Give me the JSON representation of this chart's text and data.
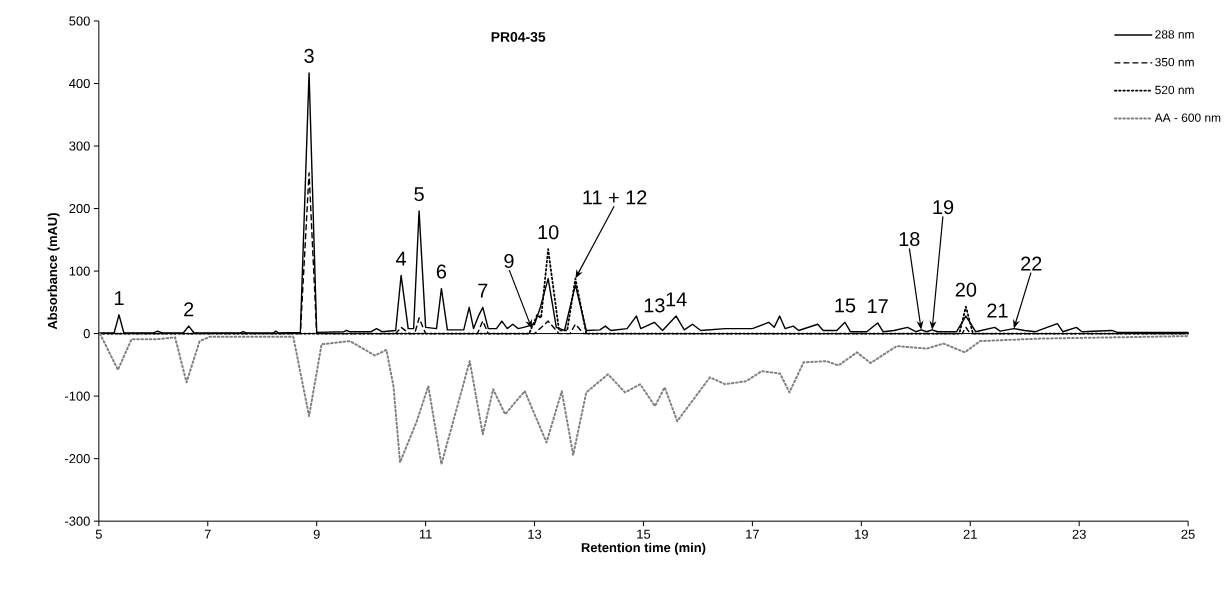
{
  "chart_data": {
    "type": "line",
    "title": "PR04-35",
    "xlabel": "Retention time (min)",
    "ylabel": "Absorbance (mAU)",
    "xlim": [
      5,
      25
    ],
    "ylim": [
      -300,
      500
    ],
    "xticks": [
      5,
      7,
      9,
      11,
      13,
      15,
      17,
      19,
      21,
      23,
      25
    ],
    "yticks": [
      -300,
      -200,
      -100,
      0,
      100,
      200,
      300,
      400,
      500
    ],
    "legend": "top right",
    "ref_lines": [
      {
        "axis": "y",
        "value": 0,
        "color": "#000000"
      }
    ],
    "series": [
      {
        "name": "288 nm",
        "color": "#000000",
        "line_style": "solid",
        "x": [
          5.0,
          5.28,
          5.37,
          5.46,
          6.0,
          6.08,
          6.16,
          6.55,
          6.65,
          6.75,
          7.6,
          7.65,
          7.7,
          8.2,
          8.25,
          8.3,
          8.7,
          8.86,
          9.0,
          9.5,
          9.55,
          9.6,
          10.0,
          10.1,
          10.2,
          10.45,
          10.55,
          10.68,
          10.78,
          10.88,
          11.0,
          11.2,
          11.29,
          11.4,
          11.7,
          11.8,
          11.88,
          11.98,
          12.05,
          12.15,
          12.3,
          12.4,
          12.5,
          12.6,
          12.7,
          12.8,
          13.0,
          13.1,
          13.25,
          13.4,
          13.55,
          13.75,
          13.95,
          14.2,
          14.3,
          14.4,
          14.7,
          14.87,
          14.95,
          15.2,
          15.35,
          15.6,
          15.75,
          15.9,
          16.05,
          16.5,
          17.0,
          17.3,
          17.4,
          17.5,
          17.6,
          17.75,
          17.85,
          18.2,
          18.3,
          18.55,
          18.7,
          18.8,
          19.1,
          19.3,
          19.4,
          19.6,
          19.85,
          20.0,
          20.1,
          20.2,
          20.3,
          20.4,
          20.75,
          20.92,
          21.1,
          21.45,
          21.55,
          21.8,
          22.0,
          22.2,
          22.6,
          22.7,
          22.95,
          23.05,
          23.6,
          23.7,
          25.0
        ],
        "values": [
          1,
          1,
          30,
          1,
          1,
          4,
          1,
          1,
          12,
          1,
          1,
          3,
          1,
          1,
          4,
          1,
          2,
          417,
          2,
          3,
          5,
          3,
          3,
          8,
          3,
          5,
          93,
          8,
          8,
          196,
          10,
          8,
          72,
          6,
          6,
          42,
          8,
          30,
          42,
          8,
          8,
          20,
          8,
          15,
          8,
          10,
          15,
          40,
          88,
          10,
          5,
          78,
          5,
          6,
          12,
          5,
          8,
          28,
          8,
          18,
          5,
          28,
          6,
          15,
          5,
          8,
          8,
          18,
          10,
          28,
          8,
          12,
          5,
          15,
          5,
          5,
          18,
          3,
          3,
          17,
          3,
          5,
          10,
          3,
          6,
          3,
          6,
          3,
          3,
          28,
          3,
          10,
          4,
          8,
          5,
          3,
          16,
          3,
          10,
          3,
          5,
          2,
          2
        ]
      },
      {
        "name": "350 nm",
        "color": "#000000",
        "line_style": "dashed",
        "x": [
          5.0,
          8.7,
          8.86,
          9.0,
          10.45,
          10.55,
          10.7,
          10.8,
          10.88,
          11.0,
          11.95,
          12.05,
          12.15,
          13.0,
          13.25,
          13.45,
          13.65,
          13.75,
          13.9,
          20.85,
          20.92,
          21.0,
          25.0
        ],
        "values": [
          0,
          0,
          257,
          0,
          0,
          10,
          0,
          0,
          25,
          0,
          0,
          20,
          0,
          0,
          20,
          0,
          0,
          15,
          0,
          0,
          10,
          0,
          0
        ]
      },
      {
        "name": "520 nm",
        "color": "#000000",
        "line_style": "dotted",
        "x": [
          5.0,
          12.9,
          13.05,
          13.12,
          13.25,
          13.45,
          13.6,
          13.75,
          13.95,
          20.8,
          20.92,
          21.05,
          25.0
        ],
        "values": [
          0,
          0,
          30,
          25,
          135,
          5,
          5,
          88,
          0,
          0,
          43,
          0,
          0
        ]
      },
      {
        "name": "AA - 600 nm",
        "color": "#808080",
        "line_style": "dotted",
        "x": [
          5.02,
          5.35,
          5.6,
          6.06,
          6.4,
          6.61,
          6.85,
          7.04,
          8.57,
          8.86,
          9.09,
          9.61,
          10.07,
          10.28,
          10.41,
          10.53,
          10.83,
          11.05,
          11.29,
          11.81,
          12.05,
          12.24,
          12.46,
          12.82,
          13.22,
          13.5,
          13.71,
          13.95,
          14.35,
          14.66,
          14.94,
          15.21,
          15.39,
          15.62,
          15.92,
          16.22,
          16.5,
          16.89,
          17.17,
          17.51,
          17.68,
          17.94,
          18.36,
          18.58,
          18.92,
          19.17,
          19.65,
          20.2,
          20.51,
          20.9,
          21.18,
          22.28,
          25.0
        ],
        "values": [
          0,
          -58,
          -9,
          -9,
          -6,
          -78,
          -12,
          -5,
          -5,
          -132,
          -17,
          -12,
          -35,
          -26,
          -84,
          -206,
          -142,
          -84,
          -209,
          -44,
          -161,
          -89,
          -129,
          -92,
          -174,
          -92,
          -194,
          -94,
          -65,
          -94,
          -81,
          -116,
          -86,
          -140,
          -105,
          -70,
          -81,
          -76,
          -60,
          -64,
          -94,
          -46,
          -44,
          -51,
          -30,
          -47,
          -20,
          -24,
          -16,
          -30,
          -12,
          -8,
          -4
        ]
      }
    ],
    "annotations": [
      {
        "text": "1",
        "x": 5.37,
        "y": 30
      },
      {
        "text": "2",
        "x": 6.65,
        "y": 12
      },
      {
        "text": "3",
        "x": 8.86,
        "y": 417
      },
      {
        "text": "4",
        "x": 10.55,
        "y": 93
      },
      {
        "text": "5",
        "x": 10.88,
        "y": 196
      },
      {
        "text": "6",
        "x": 11.29,
        "y": 72
      },
      {
        "text": "7",
        "x": 12.05,
        "y": 42
      },
      {
        "text": "9",
        "x": 12.95,
        "y": 8
      },
      {
        "text": "10",
        "x": 13.25,
        "y": 135
      },
      {
        "text": "11 + 12",
        "x": 13.75,
        "y": 88
      },
      {
        "text": "13",
        "x": 15.2,
        "y": 18
      },
      {
        "text": "14",
        "x": 15.6,
        "y": 28
      },
      {
        "text": "15",
        "x": 18.7,
        "y": 18
      },
      {
        "text": "17",
        "x": 19.3,
        "y": 17
      },
      {
        "text": "18",
        "x": 20.1,
        "y": 6
      },
      {
        "text": "19",
        "x": 20.3,
        "y": 6
      },
      {
        "text": "20",
        "x": 20.92,
        "y": 43
      },
      {
        "text": "21",
        "x": 21.5,
        "y": 10
      },
      {
        "text": "22",
        "x": 21.8,
        "y": 8
      }
    ]
  }
}
